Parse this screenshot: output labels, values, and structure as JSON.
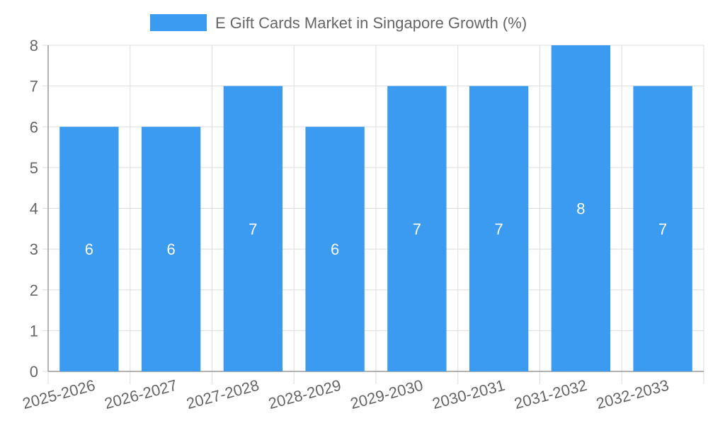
{
  "chart_data": {
    "type": "bar",
    "title": "",
    "xlabel": "",
    "ylabel": "",
    "categories": [
      "2025-2026",
      "2026-2027",
      "2027-2028",
      "2028-2029",
      "2029-2030",
      "2030-2031",
      "2031-2032",
      "2032-2033"
    ],
    "series": [
      {
        "name": "E Gift Cards Market in Singapore Growth (%)",
        "values": [
          6,
          6,
          7,
          6,
          7,
          7,
          8,
          7
        ]
      }
    ],
    "ylim": [
      0,
      8
    ],
    "yticks": [
      0,
      1,
      2,
      3,
      4,
      5,
      6,
      7,
      8
    ],
    "grid": true,
    "legend_position": "top-center",
    "data_labels": true,
    "x_tick_rotation": "angled"
  },
  "colors": {
    "bar": "#3a9bf0",
    "grid": "#dddddd",
    "axis": "#999999",
    "tick_text": "#666666",
    "legend_text": "#666666",
    "data_label": "#ffffff"
  }
}
